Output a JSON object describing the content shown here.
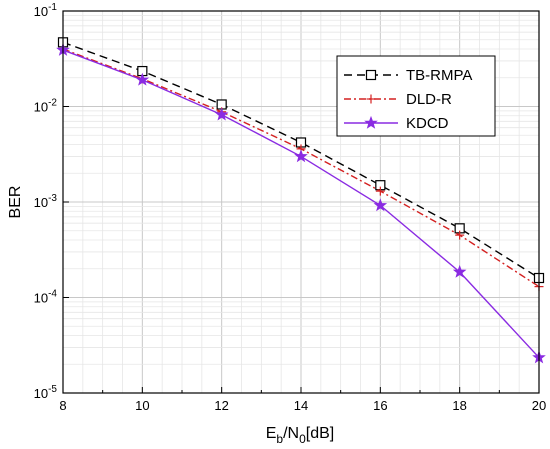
{
  "chart_data": {
    "type": "line",
    "xlabel": "Eb/N0[dB]",
    "ylabel": "BER",
    "xlim": [
      8,
      20
    ],
    "ylim": [
      1e-05,
      0.1
    ],
    "yscale": "log",
    "grid": true,
    "legend_position": "top-right",
    "x_ticks": [
      "8",
      "10",
      "12",
      "14",
      "16",
      "18",
      "20"
    ],
    "y_ticks": [
      {
        "base": "10",
        "exp": "-5"
      },
      {
        "base": "10",
        "exp": "-4"
      },
      {
        "base": "10",
        "exp": "-3"
      },
      {
        "base": "10",
        "exp": "-2"
      },
      {
        "base": "10",
        "exp": "-1"
      }
    ],
    "x": [
      8,
      10,
      12,
      14,
      16,
      18,
      20
    ],
    "series": [
      {
        "name": "TB-RMPA",
        "values": [
          0.047,
          0.0235,
          0.0105,
          0.0042,
          0.0015,
          0.00053,
          0.00016
        ],
        "color": "#000000",
        "dash": "dashed",
        "marker": "square-open"
      },
      {
        "name": "DLD-R",
        "values": [
          0.04,
          0.0195,
          0.0088,
          0.0036,
          0.0013,
          0.00045,
          0.00013
        ],
        "color": "#d42020",
        "dash": "dashdot",
        "marker": "plus"
      },
      {
        "name": "KDCD",
        "values": [
          0.039,
          0.019,
          0.0082,
          0.003,
          0.00092,
          0.000185,
          2.35e-05
        ],
        "color": "#8a2be2",
        "dash": "solid",
        "marker": "star"
      }
    ]
  }
}
